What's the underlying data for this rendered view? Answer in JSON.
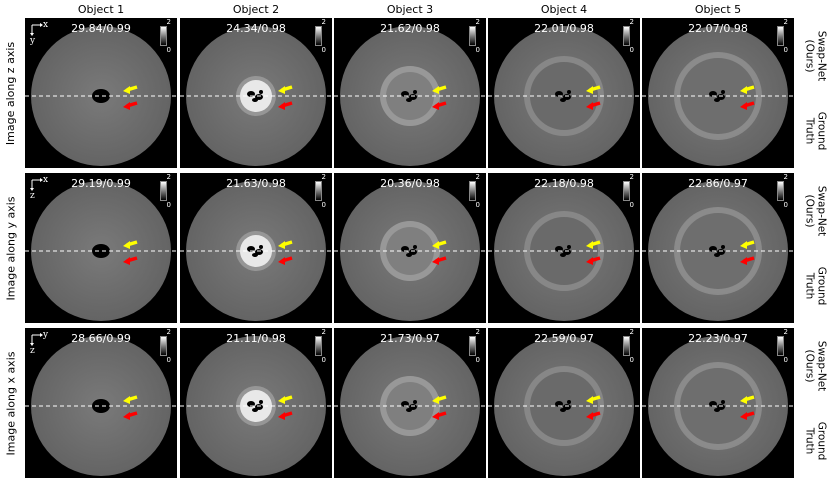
{
  "columns": [
    "Object 1",
    "Object 2",
    "Object 3",
    "Object 4",
    "Object 5"
  ],
  "rows": [
    {
      "label": "Image along z axis",
      "axes": [
        "x",
        "y"
      ],
      "metrics": [
        "29.84/0.99",
        "24.34/0.98",
        "21.62/0.98",
        "22.01/0.98",
        "22.07/0.98"
      ]
    },
    {
      "label": "Image along y axis",
      "axes": [
        "x",
        "z"
      ],
      "metrics": [
        "29.19/0.99",
        "21.63/0.98",
        "20.36/0.98",
        "22.18/0.98",
        "22.86/0.97"
      ]
    },
    {
      "label": "Image along x axis",
      "axes": [
        "y",
        "z"
      ],
      "metrics": [
        "28.66/0.99",
        "21.11/0.98",
        "21.73/0.97",
        "22.59/0.97",
        "22.23/0.97"
      ]
    }
  ],
  "side_labels": {
    "top": "Swap-Net\n(Ours)",
    "bottom": "Ground\nTruth"
  },
  "colorbar": {
    "max": "2",
    "min": "0"
  },
  "arrow_colors": {
    "upper": "#ffff00",
    "lower": "#ff0000"
  },
  "objects": [
    {
      "inner_fill": "#000000",
      "ring": "none"
    },
    {
      "inner_fill": "#e8e8e8",
      "ring": "#9a9a9a"
    },
    {
      "inner_fill": "#7f7f7f",
      "ring": "#9c9c9c"
    },
    {
      "inner_fill": "#6a6a6a",
      "ring": "#8a8a8a"
    },
    {
      "inner_fill": "#6e6e6e",
      "ring": "#8e8e8e"
    }
  ]
}
